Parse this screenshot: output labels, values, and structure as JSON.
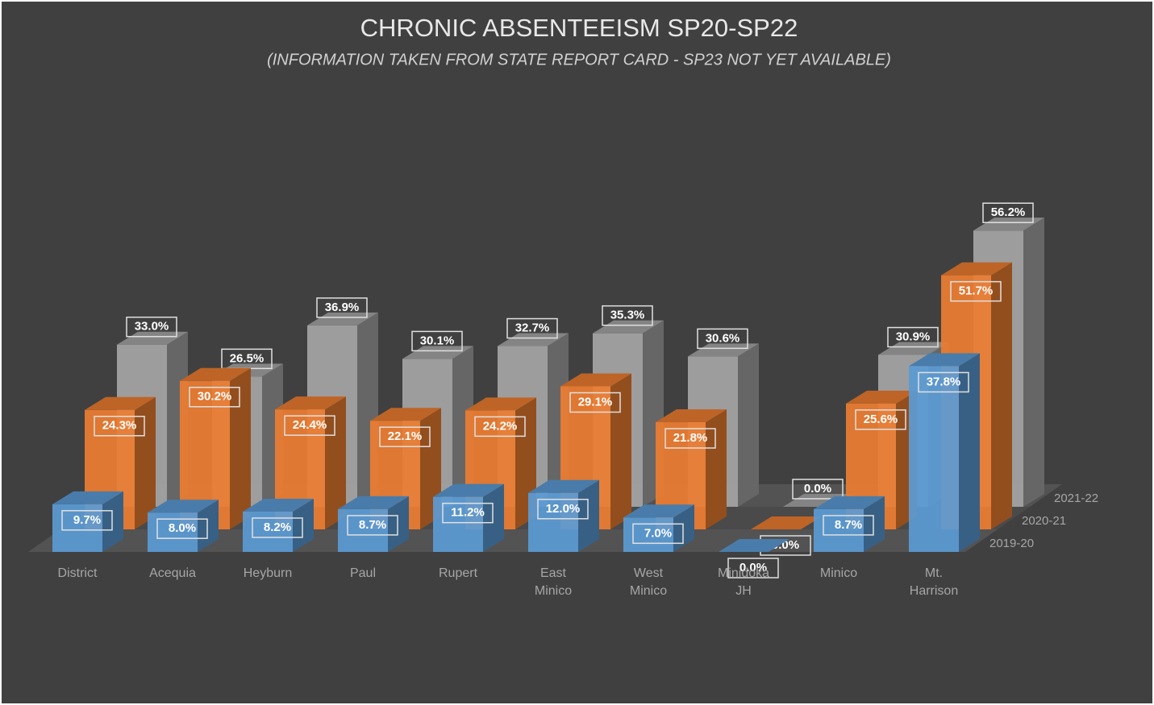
{
  "chart_data": {
    "type": "bar3d",
    "title": "CHRONIC ABSENTEEISM SP20-SP22",
    "subtitle": "(INFORMATION TAKEN FROM STATE REPORT CARD - SP23 NOT YET AVAILABLE)",
    "categories": [
      "District",
      "Acequia",
      "Heyburn",
      "Paul",
      "Rupert",
      "East Minico",
      "West Minico",
      "Minidoka JH",
      "Minico",
      "Mt. Harrison"
    ],
    "series": [
      {
        "name": "2019-20",
        "color": "#5b9bd5",
        "values": [
          9.7,
          8.0,
          8.2,
          8.7,
          11.2,
          12.0,
          7.0,
          0.0,
          8.7,
          37.8
        ],
        "value_labels": [
          "9.7%",
          "8.0%",
          "8.2%",
          "8.7%",
          "11.2%",
          "12.0%",
          "7.0%",
          "0.0%",
          "8.7%",
          "37.8%"
        ]
      },
      {
        "name": "2020-21",
        "color": "#ed7d31",
        "values": [
          24.3,
          30.2,
          24.4,
          22.1,
          24.2,
          29.1,
          21.8,
          0.0,
          25.6,
          51.7
        ],
        "value_labels": [
          "24.3%",
          "30.2%",
          "24.4%",
          "22.1%",
          "24.2%",
          "29.1%",
          "21.8%",
          "0.0%",
          "25.6%",
          "51.7%"
        ]
      },
      {
        "name": "2021-22",
        "color": "#a5a5a5",
        "values": [
          33.0,
          26.5,
          36.9,
          30.1,
          32.7,
          35.3,
          30.6,
          0.0,
          30.9,
          56.2
        ],
        "value_labels": [
          "33.0%",
          "26.5%",
          "36.9%",
          "30.1%",
          "32.7%",
          "35.3%",
          "30.6%",
          "0.0%",
          "30.9%",
          "56.2%"
        ]
      }
    ]
  }
}
